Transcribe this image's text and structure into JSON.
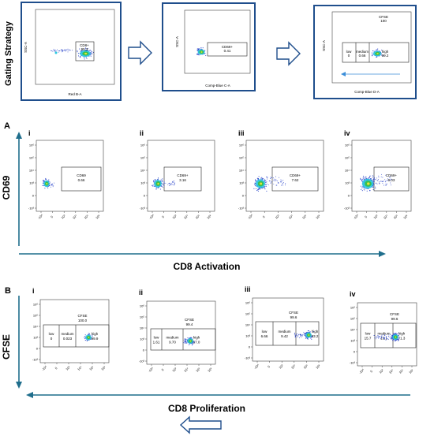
{
  "gating": {
    "side_label": "Gating Strategy",
    "panels": [
      {
        "xlabel": "Red B-A",
        "ylabel": "SSC-A",
        "gates": [
          {
            "name": "CD8+",
            "value": "95.3"
          }
        ]
      },
      {
        "xlabel": "Comp-Blue C-A",
        "ylabel": "SSC-A",
        "gates": [
          {
            "name": "CD69+",
            "value": "0.41"
          }
        ]
      },
      {
        "xlabel": "Comp-Blue D-A",
        "ylabel": "SSC-A",
        "parent": {
          "name": "CFSE",
          "value": "100"
        },
        "gates": [
          {
            "name": "low",
            "value": "0"
          },
          {
            "name": "medium",
            "value": "0.66"
          },
          {
            "name": "high",
            "value": "99.2"
          }
        ]
      }
    ]
  },
  "panel_a": {
    "letter": "A",
    "ylabel": "CD69",
    "caption": "CD8 Activation",
    "plots": [
      {
        "roman": "i",
        "gate": "CD69",
        "value": "0.66"
      },
      {
        "roman": "ii",
        "gate": "CD69+",
        "value": "3.16"
      },
      {
        "roman": "iii",
        "gate": "CD69+",
        "value": "7.62"
      },
      {
        "roman": "iv",
        "gate": "CD69+",
        "value": "9.03"
      }
    ]
  },
  "panel_b": {
    "letter": "B",
    "ylabel": "CFSE",
    "caption": "CD8 Proliferation",
    "plots": [
      {
        "roman": "i",
        "parent": "CFSE",
        "parent_value": "100.0",
        "gates": [
          {
            "name": "low",
            "value": "0"
          },
          {
            "name": "medium",
            "value": "0.023"
          },
          {
            "name": "high",
            "value": "99.9"
          }
        ]
      },
      {
        "roman": "ii",
        "parent": "CFSE",
        "parent_value": "99.4",
        "gates": [
          {
            "name": "low",
            "value": "1.61"
          },
          {
            "name": "medium",
            "value": "9.70"
          },
          {
            "name": "high",
            "value": "87.0"
          }
        ]
      },
      {
        "roman": "iii",
        "parent": "CFSE",
        "parent_value": "99.6",
        "gates": [
          {
            "name": "low",
            "value": "6.66"
          },
          {
            "name": "medium",
            "value": "9.42"
          },
          {
            "name": "high",
            "value": "83.2"
          }
        ]
      },
      {
        "roman": "iv",
        "parent": "CFSE",
        "parent_value": "99.6",
        "gates": [
          {
            "name": "low",
            "value": "15.7"
          },
          {
            "name": "medium",
            "value": "13.1"
          },
          {
            "name": "high",
            "value": "71.3"
          }
        ]
      }
    ]
  },
  "axis_ticks": {
    "y": [
      "10⁶",
      "10⁵",
      "10⁴",
      "10³",
      "0",
      "-10³"
    ],
    "x": [
      "-10³",
      "0",
      "10³",
      "10⁴",
      "10⁵",
      "10⁶"
    ]
  },
  "colors": {
    "frame_blue": "#1f4e8c",
    "arrow_teal": "#1f6e8c",
    "dots_blue": "#2742c9",
    "dots_cyan": "#2bc8e0",
    "dots_green": "#39c24a",
    "dots_yellow": "#e8e23a"
  }
}
